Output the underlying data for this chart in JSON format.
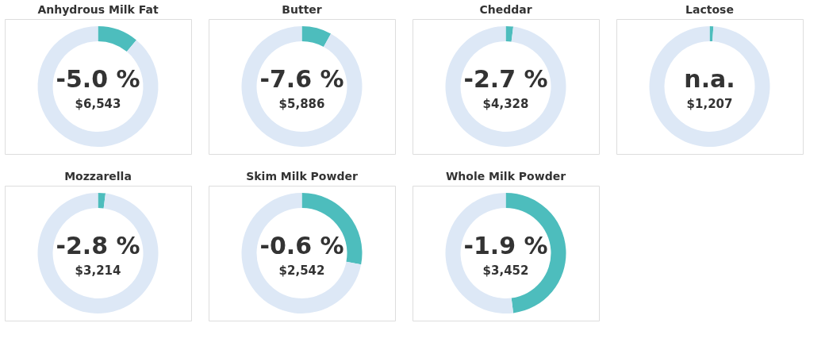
{
  "chart_data": [
    {
      "type": "donut",
      "title": "Anhydrous Milk Fat",
      "categories": [
        null,
        null
      ],
      "values": [
        11,
        89
      ],
      "colors": [
        "#4dbdbd",
        "#dde8f6"
      ],
      "annotations": [
        "-5.0 %",
        "$6,543"
      ]
    },
    {
      "type": "donut",
      "title": "Butter",
      "categories": [
        null,
        null
      ],
      "values": [
        8,
        92
      ],
      "colors": [
        "#4dbdbd",
        "#dde8f6"
      ],
      "annotations": [
        "-7.6 %",
        "$5,886"
      ]
    },
    {
      "type": "donut",
      "title": "Cheddar",
      "categories": [
        null,
        null
      ],
      "values": [
        2,
        98
      ],
      "colors": [
        "#4dbdbd",
        "#dde8f6"
      ],
      "annotations": [
        "-2.7 %",
        "$4,328"
      ]
    },
    {
      "type": "donut",
      "title": "Lactose",
      "categories": [
        null,
        null
      ],
      "values": [
        1,
        99
      ],
      "colors": [
        "#4dbdbd",
        "#dde8f6"
      ],
      "annotations": [
        "n.a.",
        "$1,207"
      ]
    },
    {
      "type": "donut",
      "title": "Mozzarella",
      "categories": [
        null,
        null
      ],
      "values": [
        2,
        98
      ],
      "colors": [
        "#4dbdbd",
        "#dde8f6"
      ],
      "annotations": [
        "-2.8 %",
        "$3,214"
      ]
    },
    {
      "type": "donut",
      "title": "Skim Milk Powder",
      "categories": [
        null,
        null
      ],
      "values": [
        28,
        72
      ],
      "colors": [
        "#4dbdbd",
        "#dde8f6"
      ],
      "annotations": [
        "-0.6 %",
        "$2,542"
      ]
    },
    {
      "type": "donut",
      "title": "Whole Milk Powder",
      "categories": [
        null,
        null
      ],
      "values": [
        48,
        52
      ],
      "colors": [
        "#4dbdbd",
        "#dde8f6"
      ],
      "annotations": [
        "-1.9 %",
        "$3,452"
      ]
    }
  ]
}
